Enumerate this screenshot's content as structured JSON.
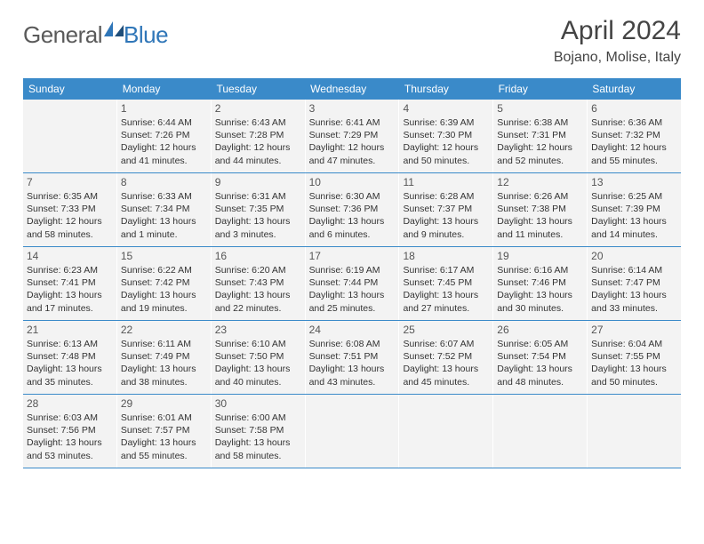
{
  "brand": {
    "part1": "General",
    "part2": "Blue"
  },
  "title": "April 2024",
  "location": "Bojano, Molise, Italy",
  "colors": {
    "header_bg": "#3a8ac9",
    "cell_bg": "#f3f3f3",
    "text": "#333333",
    "brand_blue": "#2f76b8",
    "brand_gray": "#5a5a5a"
  },
  "day_names": [
    "Sunday",
    "Monday",
    "Tuesday",
    "Wednesday",
    "Thursday",
    "Friday",
    "Saturday"
  ],
  "weeks": [
    [
      {
        "empty": true
      },
      {
        "n": "1",
        "sr": "6:44 AM",
        "ss": "7:26 PM",
        "dl": "12 hours and 41 minutes."
      },
      {
        "n": "2",
        "sr": "6:43 AM",
        "ss": "7:28 PM",
        "dl": "12 hours and 44 minutes."
      },
      {
        "n": "3",
        "sr": "6:41 AM",
        "ss": "7:29 PM",
        "dl": "12 hours and 47 minutes."
      },
      {
        "n": "4",
        "sr": "6:39 AM",
        "ss": "7:30 PM",
        "dl": "12 hours and 50 minutes."
      },
      {
        "n": "5",
        "sr": "6:38 AM",
        "ss": "7:31 PM",
        "dl": "12 hours and 52 minutes."
      },
      {
        "n": "6",
        "sr": "6:36 AM",
        "ss": "7:32 PM",
        "dl": "12 hours and 55 minutes."
      }
    ],
    [
      {
        "n": "7",
        "sr": "6:35 AM",
        "ss": "7:33 PM",
        "dl": "12 hours and 58 minutes."
      },
      {
        "n": "8",
        "sr": "6:33 AM",
        "ss": "7:34 PM",
        "dl": "13 hours and 1 minute."
      },
      {
        "n": "9",
        "sr": "6:31 AM",
        "ss": "7:35 PM",
        "dl": "13 hours and 3 minutes."
      },
      {
        "n": "10",
        "sr": "6:30 AM",
        "ss": "7:36 PM",
        "dl": "13 hours and 6 minutes."
      },
      {
        "n": "11",
        "sr": "6:28 AM",
        "ss": "7:37 PM",
        "dl": "13 hours and 9 minutes."
      },
      {
        "n": "12",
        "sr": "6:26 AM",
        "ss": "7:38 PM",
        "dl": "13 hours and 11 minutes."
      },
      {
        "n": "13",
        "sr": "6:25 AM",
        "ss": "7:39 PM",
        "dl": "13 hours and 14 minutes."
      }
    ],
    [
      {
        "n": "14",
        "sr": "6:23 AM",
        "ss": "7:41 PM",
        "dl": "13 hours and 17 minutes."
      },
      {
        "n": "15",
        "sr": "6:22 AM",
        "ss": "7:42 PM",
        "dl": "13 hours and 19 minutes."
      },
      {
        "n": "16",
        "sr": "6:20 AM",
        "ss": "7:43 PM",
        "dl": "13 hours and 22 minutes."
      },
      {
        "n": "17",
        "sr": "6:19 AM",
        "ss": "7:44 PM",
        "dl": "13 hours and 25 minutes."
      },
      {
        "n": "18",
        "sr": "6:17 AM",
        "ss": "7:45 PM",
        "dl": "13 hours and 27 minutes."
      },
      {
        "n": "19",
        "sr": "6:16 AM",
        "ss": "7:46 PM",
        "dl": "13 hours and 30 minutes."
      },
      {
        "n": "20",
        "sr": "6:14 AM",
        "ss": "7:47 PM",
        "dl": "13 hours and 33 minutes."
      }
    ],
    [
      {
        "n": "21",
        "sr": "6:13 AM",
        "ss": "7:48 PM",
        "dl": "13 hours and 35 minutes."
      },
      {
        "n": "22",
        "sr": "6:11 AM",
        "ss": "7:49 PM",
        "dl": "13 hours and 38 minutes."
      },
      {
        "n": "23",
        "sr": "6:10 AM",
        "ss": "7:50 PM",
        "dl": "13 hours and 40 minutes."
      },
      {
        "n": "24",
        "sr": "6:08 AM",
        "ss": "7:51 PM",
        "dl": "13 hours and 43 minutes."
      },
      {
        "n": "25",
        "sr": "6:07 AM",
        "ss": "7:52 PM",
        "dl": "13 hours and 45 minutes."
      },
      {
        "n": "26",
        "sr": "6:05 AM",
        "ss": "7:54 PM",
        "dl": "13 hours and 48 minutes."
      },
      {
        "n": "27",
        "sr": "6:04 AM",
        "ss": "7:55 PM",
        "dl": "13 hours and 50 minutes."
      }
    ],
    [
      {
        "n": "28",
        "sr": "6:03 AM",
        "ss": "7:56 PM",
        "dl": "13 hours and 53 minutes."
      },
      {
        "n": "29",
        "sr": "6:01 AM",
        "ss": "7:57 PM",
        "dl": "13 hours and 55 minutes."
      },
      {
        "n": "30",
        "sr": "6:00 AM",
        "ss": "7:58 PM",
        "dl": "13 hours and 58 minutes."
      },
      {
        "empty": true
      },
      {
        "empty": true
      },
      {
        "empty": true
      },
      {
        "empty": true
      }
    ]
  ],
  "labels": {
    "sunrise": "Sunrise:",
    "sunset": "Sunset:",
    "daylight": "Daylight:"
  }
}
